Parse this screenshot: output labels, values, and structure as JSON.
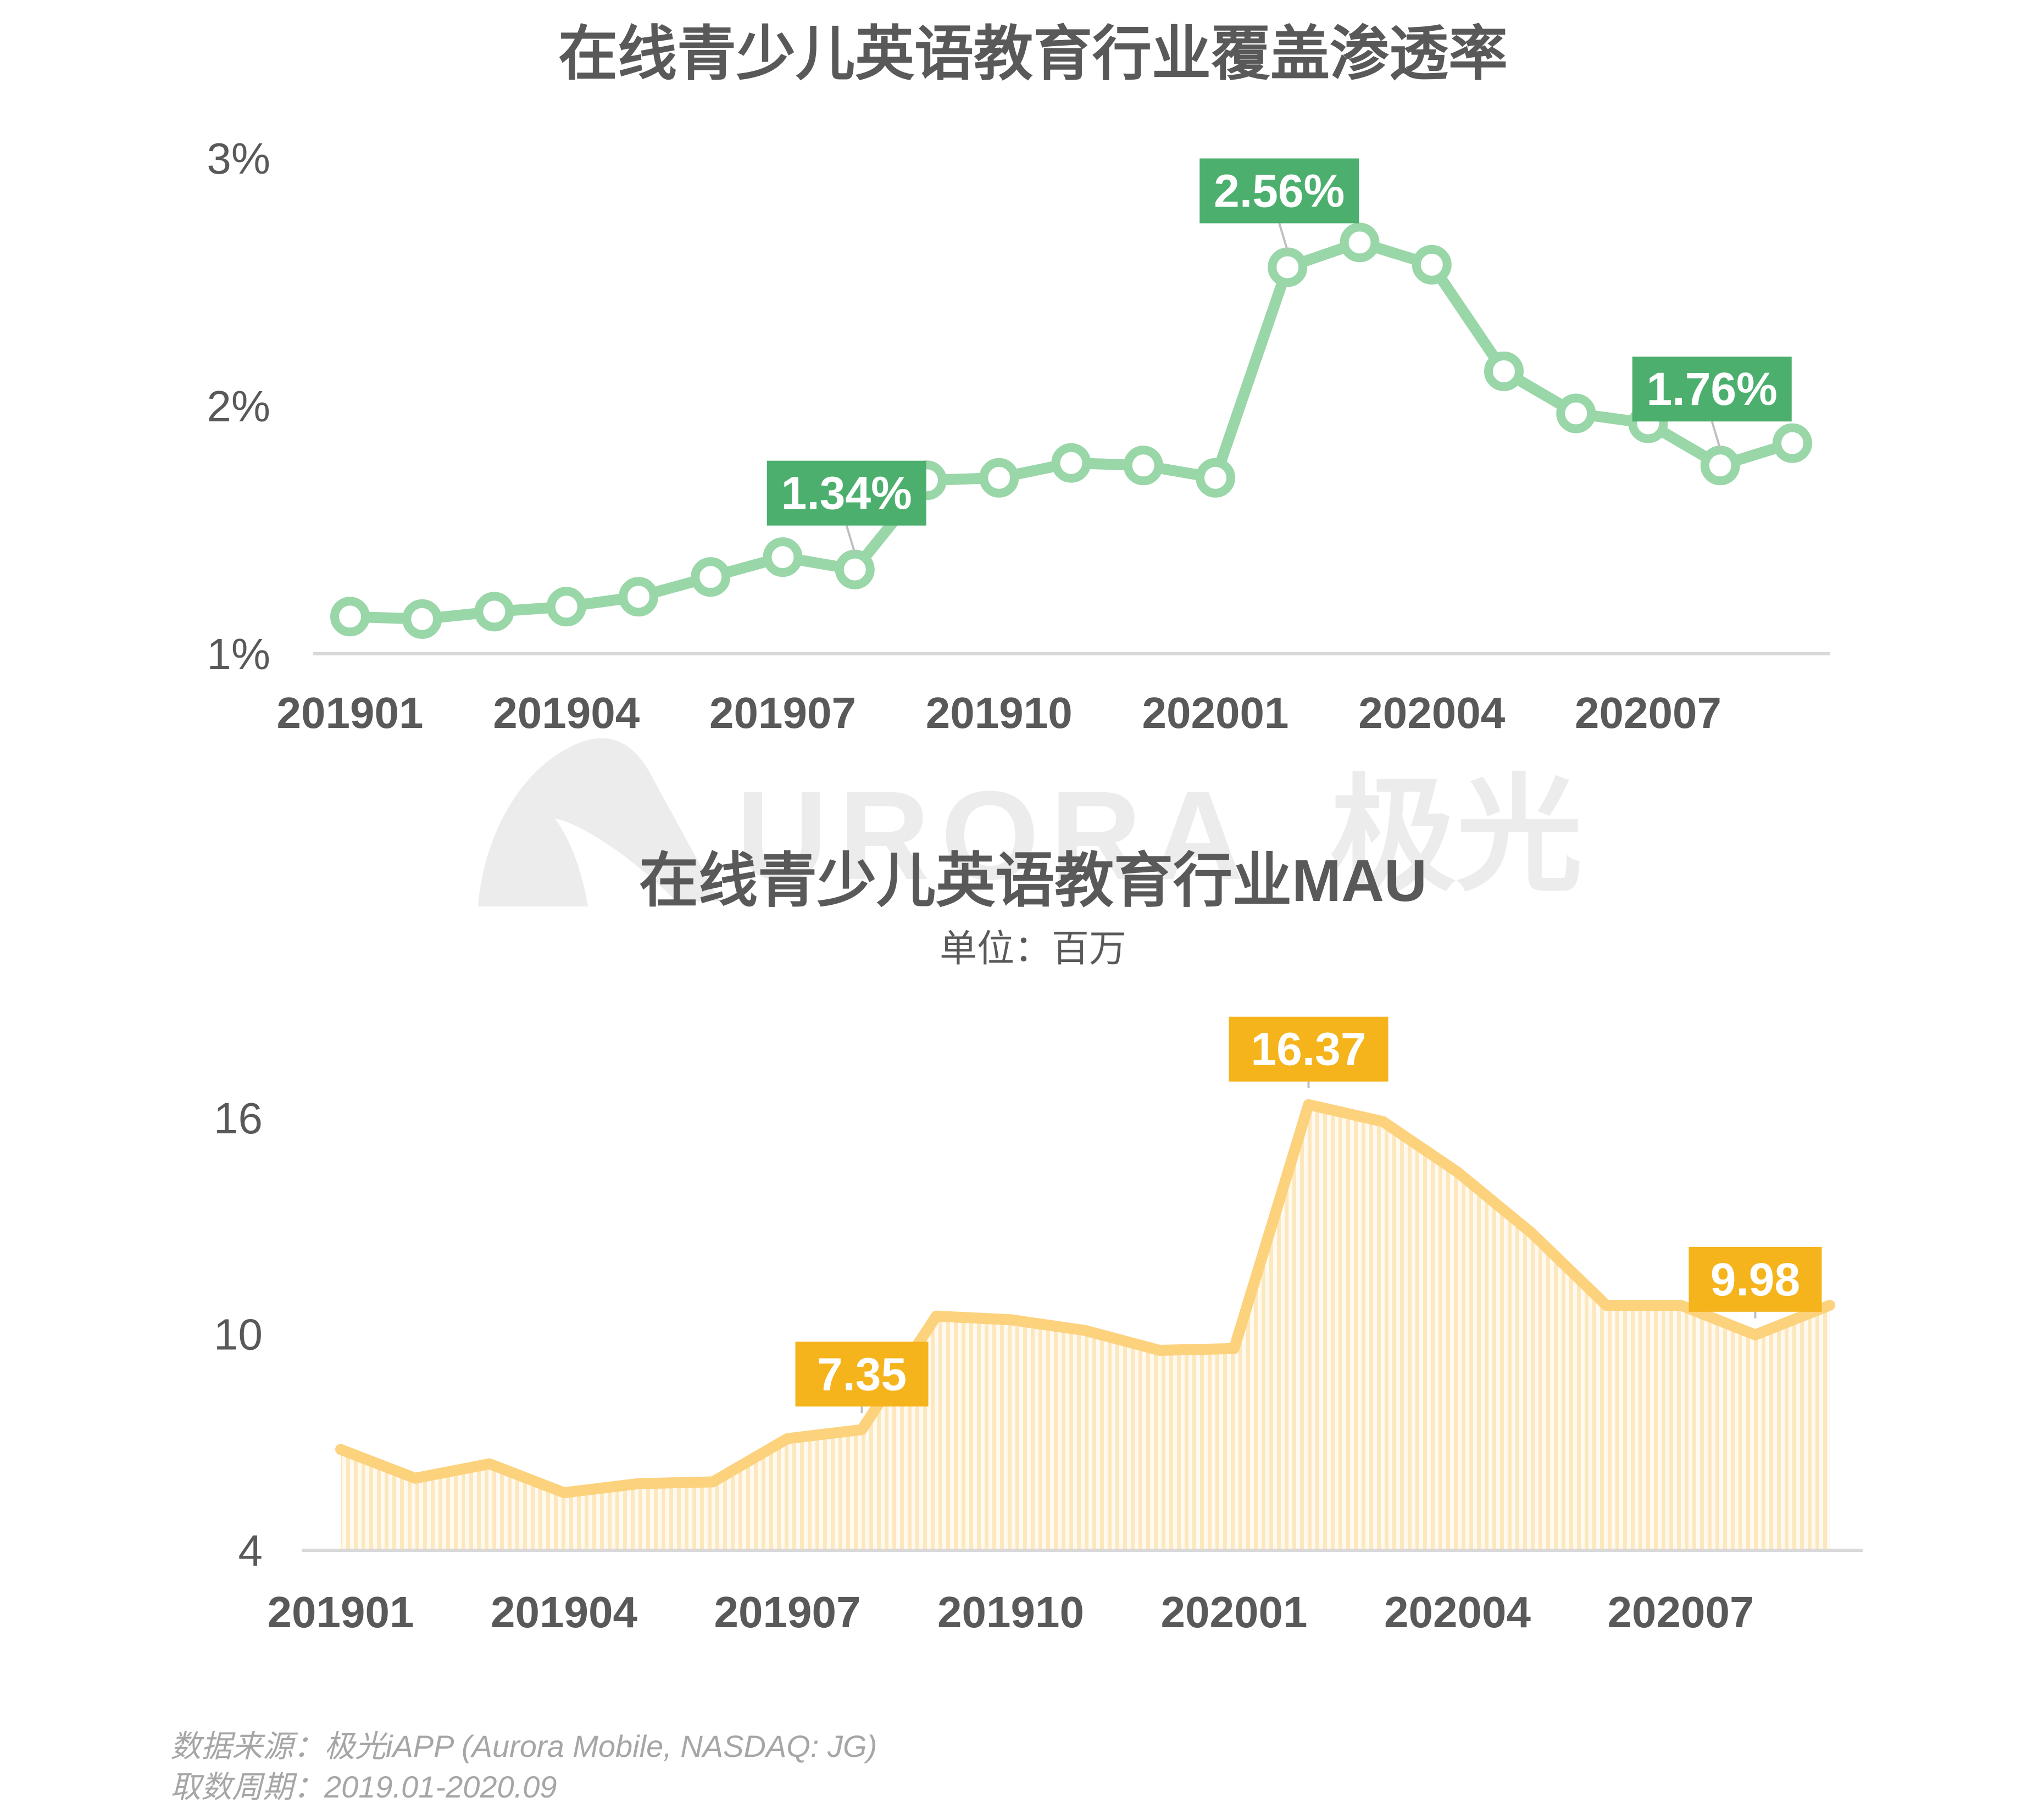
{
  "watermark": {
    "logo_text": "URORA",
    "logo_cn": "极光"
  },
  "footer": {
    "source": "数据来源：极光iAPP (Aurora Mobile, NASDAQ: JG)",
    "period": "取数周期：2019.01-2020.09"
  },
  "chart_data": [
    {
      "type": "line",
      "title": "在线青少儿英语教育行业覆盖渗透率",
      "x": [
        "201901",
        "201902",
        "201903",
        "201904",
        "201905",
        "201906",
        "201907",
        "201908",
        "201909",
        "201910",
        "201911",
        "201912",
        "202001",
        "202002",
        "202003",
        "202004",
        "202005",
        "202006",
        "202007",
        "202008",
        "202009"
      ],
      "x_tick_labels": [
        "201901",
        "201904",
        "201907",
        "201910",
        "202001",
        "202004",
        "202007"
      ],
      "values": [
        1.15,
        1.14,
        1.17,
        1.19,
        1.23,
        1.31,
        1.39,
        1.34,
        1.7,
        1.71,
        1.77,
        1.76,
        1.71,
        2.56,
        2.66,
        2.57,
        2.14,
        1.97,
        1.93,
        1.76,
        1.85
      ],
      "unit": "%",
      "y_ticks": [
        "1%",
        "2%",
        "3%"
      ],
      "ylim": [
        1,
        3
      ],
      "color": "#99d6a8",
      "label_color": "#4caf6e",
      "labels": [
        {
          "x": "201908",
          "text": "1.34%"
        },
        {
          "x": "202002",
          "text": "2.56%"
        },
        {
          "x": "202008",
          "text": "1.76%"
        }
      ],
      "grid": false,
      "legend": "none"
    },
    {
      "type": "area",
      "title": "在线青少儿英语教育行业MAU",
      "subtitle": "单位：百万",
      "x": [
        "201901",
        "201902",
        "201903",
        "201904",
        "201905",
        "201906",
        "201907",
        "201908",
        "201909",
        "201910",
        "201911",
        "201912",
        "202001",
        "202002",
        "202003",
        "202004",
        "202005",
        "202006",
        "202007",
        "202008",
        "202009"
      ],
      "x_tick_labels": [
        "201901",
        "201904",
        "201907",
        "201910",
        "202001",
        "202004",
        "202007"
      ],
      "values": [
        6.8,
        6.0,
        6.4,
        5.6,
        5.85,
        5.9,
        7.1,
        7.35,
        10.5,
        10.4,
        10.1,
        9.55,
        9.6,
        16.37,
        15.9,
        14.5,
        12.8,
        10.8,
        10.8,
        9.98,
        10.8
      ],
      "y_ticks": [
        "4",
        "10",
        "16"
      ],
      "ylim": [
        4,
        16
      ],
      "color": "#fcd27d",
      "fill_color": "#fdeccb",
      "label_color": "#f5b31c",
      "labels": [
        {
          "x": "201908",
          "text": "7.35"
        },
        {
          "x": "202002",
          "text": "16.37"
        },
        {
          "x": "202008",
          "text": "9.98"
        }
      ],
      "grid": false,
      "legend": "none"
    }
  ]
}
